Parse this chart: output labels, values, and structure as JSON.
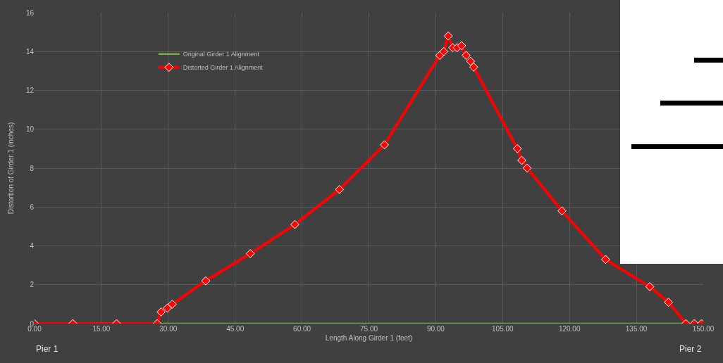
{
  "chart_data": {
    "type": "line",
    "xlabel": "Length Along Girder 1 (feet)",
    "ylabel": "Distortion of Girder 1 (inches)",
    "xlim": [
      0,
      150
    ],
    "ylim": [
      0,
      16
    ],
    "xticks": [
      {
        "value": 0,
        "label": "0.00"
      },
      {
        "value": 15,
        "label": "15.00"
      },
      {
        "value": 30,
        "label": "30.00"
      },
      {
        "value": 45,
        "label": "45.00"
      },
      {
        "value": 60,
        "label": "60.00"
      },
      {
        "value": 75,
        "label": "75.00"
      },
      {
        "value": 90,
        "label": "90.00"
      },
      {
        "value": 105,
        "label": "105.00"
      },
      {
        "value": 120,
        "label": "120.00"
      },
      {
        "value": 135,
        "label": "135.00"
      },
      {
        "value": 150,
        "label": "150.00"
      }
    ],
    "yticks": [
      0,
      2,
      4,
      6,
      8,
      10,
      12,
      14,
      16
    ],
    "grid": true,
    "legend": "top left",
    "line_style": "solid",
    "annotations": [
      "Pier 1",
      "Pier 2"
    ],
    "series": [
      {
        "name": "Original Girder 1 Alignment",
        "color": "#70ad47",
        "marker": "none",
        "x": [
          0,
          145.5
        ],
        "values": [
          0,
          0
        ]
      },
      {
        "name": "Distorted Girder 1 Alignment",
        "color": "#ff0000",
        "marker": "diamond",
        "x": [
          0,
          8.6,
          18.4,
          27.5,
          28.4,
          29.8,
          30.9,
          38.4,
          48.4,
          58.4,
          68.4,
          78.5,
          90.9,
          91.8,
          92.8,
          93.8,
          94.8,
          95.8,
          96.8,
          97.8,
          98.5,
          108.3,
          109.3,
          110.5,
          118.3,
          128.1,
          138.0,
          142.2,
          146.1,
          148.0,
          149.6
        ],
        "values": [
          0,
          0,
          0,
          0,
          0.6,
          0.8,
          1.0,
          2.2,
          3.6,
          5.1,
          6.9,
          9.2,
          13.8,
          14.0,
          14.8,
          14.2,
          14.2,
          14.3,
          13.8,
          13.5,
          13.2,
          9.0,
          8.4,
          8.0,
          5.8,
          3.3,
          1.9,
          1.1,
          0,
          0,
          0
        ]
      }
    ]
  }
}
